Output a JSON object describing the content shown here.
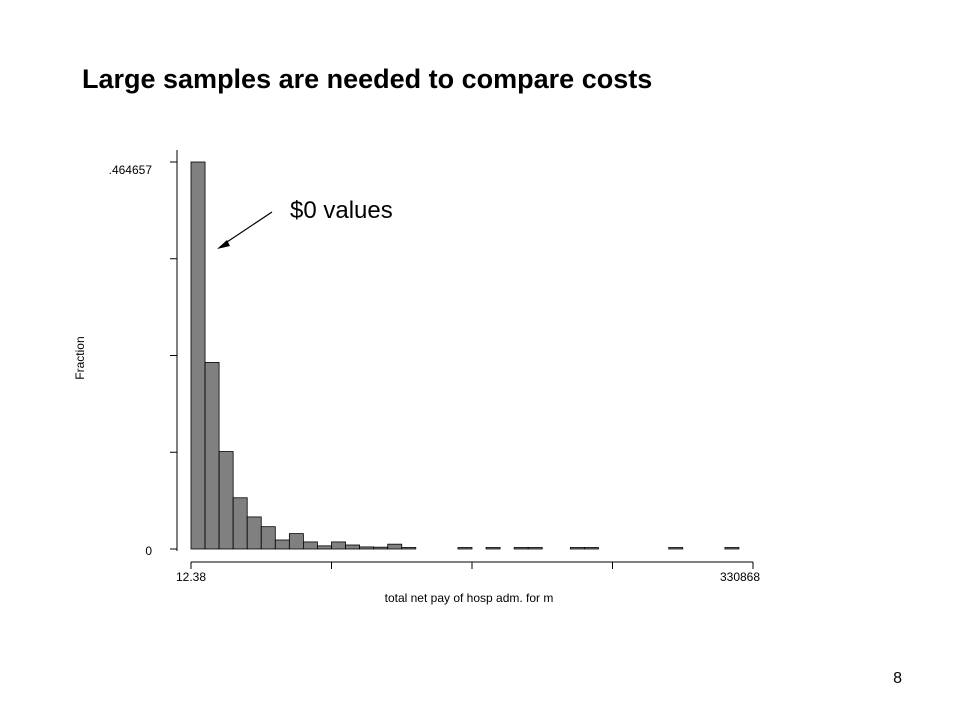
{
  "slide": {
    "title": "Large samples are needed to compare costs",
    "page_number": "8"
  },
  "chart_data": {
    "type": "bar",
    "subtype": "histogram",
    "ylabel": "Fraction",
    "xlabel": "total net pay of hosp adm. for m",
    "x_range": [
      12.38,
      330868
    ],
    "ylim": [
      0,
      0.464657
    ],
    "y_tick_labels": [
      ".464657",
      "0"
    ],
    "x_tick_labels": [
      "12.38",
      "330868"
    ],
    "bin_count": 40,
    "values": [
      0.464657,
      0.224,
      0.117,
      0.0615,
      0.0385,
      0.0268,
      0.0108,
      0.0185,
      0.0085,
      0.0038,
      0.0085,
      0.0048,
      0.0025,
      0.0022,
      0.0058,
      0.0012,
      0,
      0,
      0,
      0.0008,
      0,
      0.0008,
      0,
      0.0008,
      0.0008,
      0,
      0,
      0.0008,
      0.0008,
      0,
      0,
      0,
      0,
      0,
      0.0008,
      0,
      0,
      0,
      0.0008,
      0
    ],
    "annotations": [
      {
        "text": "$0 values",
        "points_to_bin": 1
      }
    ],
    "bar_color": "#808080",
    "grid": false,
    "legend": "none"
  }
}
